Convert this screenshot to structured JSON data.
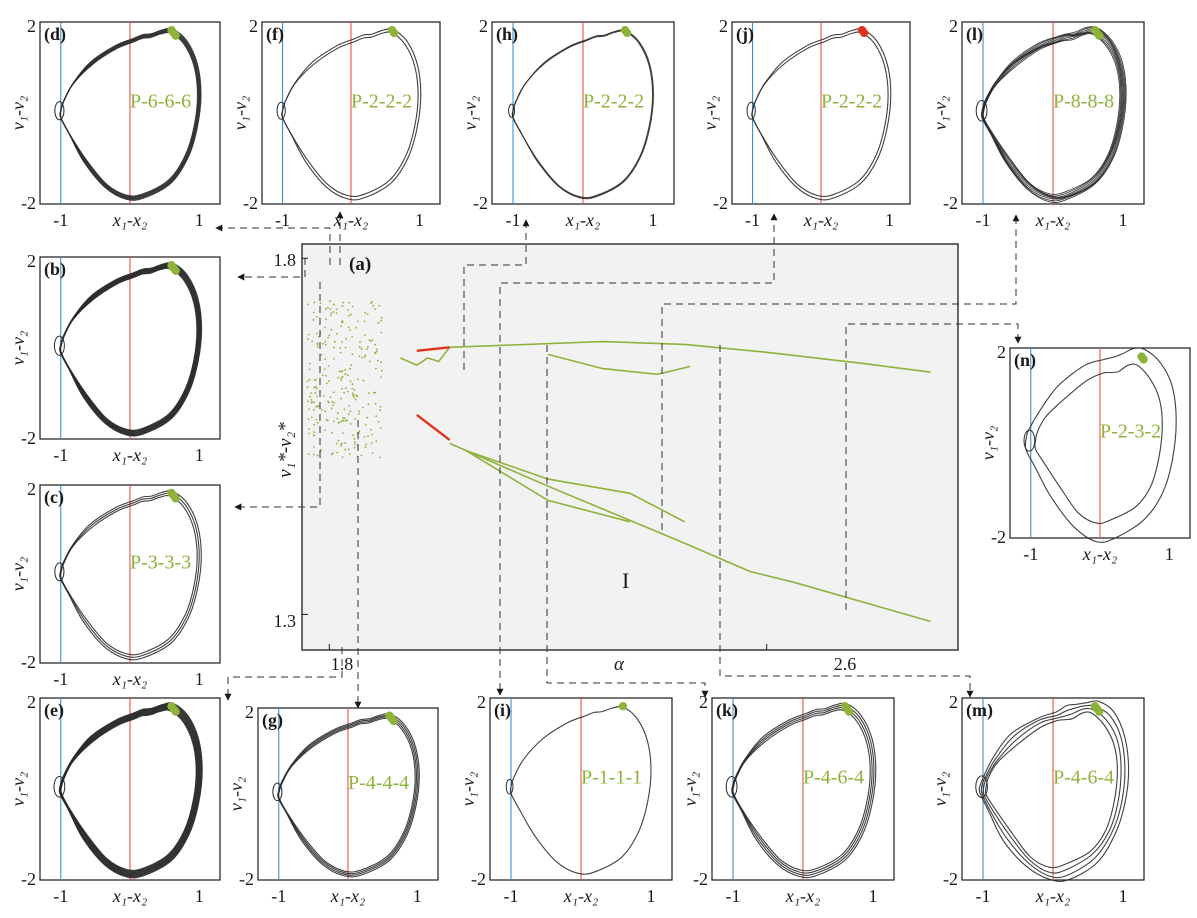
{
  "colors": {
    "ink": "#1a1a1a",
    "trajectory": "#2b2b2b",
    "green": "#8db33a",
    "red": "#e2321e",
    "blue_line": "#3b8fd0",
    "red_line": "#e5534b",
    "connector": "#333333",
    "bif_bg": "#f2f2f2"
  },
  "panels": [
    {
      "id": "d",
      "letter": "(d)",
      "period": "P-6-6-6",
      "loops": 6,
      "spread": 0.025,
      "inner": 0.6,
      "dots": "green",
      "ylabel": "v₁-v₂",
      "xlabel": "x₁-x₂",
      "ytick_top": "2",
      "ytick_bottom": "-2",
      "xtick_left": "-1",
      "xtick_right": "1"
    },
    {
      "id": "f",
      "letter": "(f)",
      "period": "P-2-2-2",
      "loops": 2,
      "spread": 0.02,
      "inner": 0.5,
      "dots": "green",
      "ylabel": "v₁-v₂",
      "xlabel": "x₁-x₂",
      "ytick_top": "2",
      "ytick_bottom": "-2",
      "xtick_left": "-1",
      "xtick_right": "1"
    },
    {
      "id": "h",
      "letter": "(h)",
      "period": "P-2-2-2",
      "loops": 2,
      "spread": 0.006,
      "inner": 0.2,
      "dots": "green",
      "ylabel": "v₁-v₂",
      "xlabel": "x₁-x₂",
      "ytick_top": "2",
      "ytick_bottom": "-2",
      "xtick_left": "-1",
      "xtick_right": "1"
    },
    {
      "id": "j",
      "letter": "(j)",
      "period": "P-2-2-2",
      "loops": 2,
      "spread": 0.02,
      "inner": 0.5,
      "dots": "red",
      "ylabel": "v₁-v₂",
      "xlabel": "x₁-x₂",
      "ytick_top": "2",
      "ytick_bottom": "-2",
      "xtick_left": "-1",
      "xtick_right": "1"
    },
    {
      "id": "l",
      "letter": "(l)",
      "period": "P-8-8-8",
      "loops": 8,
      "spread": 0.045,
      "inner": 0.8,
      "dots": "green",
      "ylabel": "v₁-v₂",
      "xlabel": "x₁-x₂",
      "ytick_top": "2",
      "ytick_bottom": "-2",
      "xtick_left": "-1",
      "xtick_right": "1"
    },
    {
      "id": "b",
      "letter": "(b)",
      "period": "",
      "loops": 12,
      "spread": 0.035,
      "inner": 0.7,
      "dots": "green",
      "ylabel": "v₁-v₂",
      "xlabel": "x₁-x₂",
      "ytick_top": "2",
      "ytick_bottom": "-2",
      "xtick_left": "-1",
      "xtick_right": "1"
    },
    {
      "id": "c",
      "letter": "(c)",
      "period": "P-3-3-3",
      "loops": 3,
      "spread": 0.03,
      "inner": 0.6,
      "dots": "green",
      "ylabel": "v₁-v₂",
      "xlabel": "x₁-x₂",
      "ytick_top": "2",
      "ytick_bottom": "-2",
      "xtick_left": "-1",
      "xtick_right": "1"
    },
    {
      "id": "n",
      "letter": "(n)",
      "period": "P-2-3-2",
      "loops": 2,
      "spread": 0.1,
      "inner": 0.8,
      "dots": "green",
      "ylabel": "v₁-v₂",
      "xlabel": "x₁-x₂",
      "ytick_top": "2",
      "ytick_bottom": "-2",
      "xtick_left": "-1",
      "xtick_right": "1"
    },
    {
      "id": "e",
      "letter": "(e)",
      "period": "",
      "loops": 14,
      "spread": 0.045,
      "inner": 0.8,
      "dots": "green",
      "ylabel": "v₁-v₂",
      "xlabel": "x₁-x₂",
      "ytick_top": "2",
      "ytick_bottom": "-2",
      "xtick_left": "-1",
      "xtick_right": "1"
    },
    {
      "id": "g",
      "letter": "(g)",
      "period": "P-4-4-4",
      "loops": 4,
      "spread": 0.03,
      "inner": 0.6,
      "dots": "green",
      "ylabel": "v₁-v₂",
      "xlabel": "x₁-x₂",
      "ytick_top": "2",
      "ytick_bottom": "-2",
      "xtick_left": "-1",
      "xtick_right": "1"
    },
    {
      "id": "i",
      "letter": "(i)",
      "period": "P-1-1-1",
      "loops": 1,
      "spread": 0,
      "inner": 0.3,
      "dots": "green",
      "ylabel": "v₁-v₂",
      "xlabel": "x₁-x₂",
      "ytick_top": "2",
      "ytick_bottom": "-2",
      "xtick_left": "-1",
      "xtick_right": "1"
    },
    {
      "id": "k",
      "letter": "(k)",
      "period": "P-4-6-4",
      "loops": 4,
      "spread": 0.04,
      "inner": 0.8,
      "dots": "green",
      "ylabel": "v₁-v₂",
      "xlabel": "x₁-x₂",
      "ytick_top": "2",
      "ytick_bottom": "-2",
      "xtick_left": "-1",
      "xtick_right": "1"
    },
    {
      "id": "m",
      "letter": "(m)",
      "period": "P-4-6-4",
      "loops": 4,
      "spread": 0.08,
      "inner": 0.9,
      "dots": "green",
      "ylabel": "v₁-v₂",
      "xlabel": "x₁-x₂",
      "ytick_top": "2",
      "ytick_bottom": "-2",
      "xtick_left": "-1",
      "xtick_right": "1"
    }
  ],
  "chart_data": {
    "type": "scatter",
    "letter": "(a)",
    "region_label": "I",
    "xlabel": "α",
    "ylabel": "v₁*-v₂*",
    "xlim": [
      1.75,
      2.95
    ],
    "ylim": [
      1.25,
      1.82
    ],
    "xticks": [
      "1.8",
      "2.6"
    ],
    "xtick_values": [
      1.8,
      2.6
    ],
    "yticks": [
      "1.8",
      "1.3"
    ],
    "ytick_values": [
      1.8,
      1.3
    ],
    "series": [
      {
        "color": "green",
        "x": [
          2.02,
          2.3,
          2.45,
          2.6,
          2.78,
          2.9
        ],
        "y": [
          1.675,
          1.683,
          1.679,
          1.668,
          1.652,
          1.64
        ]
      },
      {
        "color": "green",
        "x": [
          2.2,
          2.3,
          2.4,
          2.46
        ],
        "y": [
          1.665,
          1.645,
          1.637,
          1.648
        ]
      },
      {
        "color": "green",
        "x": [
          2.02,
          2.2,
          2.45,
          2.57,
          2.65,
          2.9
        ],
        "y": [
          1.54,
          1.48,
          1.4,
          1.36,
          1.345,
          1.29
        ]
      },
      {
        "color": "green",
        "x": [
          2.05,
          2.2,
          2.35,
          2.45
        ],
        "y": [
          1.53,
          1.49,
          1.47,
          1.43
        ]
      },
      {
        "color": "green",
        "x": [
          2.05,
          2.2,
          2.35
        ],
        "y": [
          1.53,
          1.46,
          1.43
        ]
      },
      {
        "color": "green",
        "x": [
          1.93,
          1.96,
          1.98,
          2.0,
          2.02
        ],
        "y": [
          1.66,
          1.65,
          1.66,
          1.655,
          1.675
        ]
      },
      {
        "color": "red",
        "x": [
          1.96,
          2.02
        ],
        "y": [
          1.67,
          1.675
        ]
      },
      {
        "color": "red",
        "x": [
          1.96,
          2.02
        ],
        "y": [
          1.58,
          1.545
        ]
      }
    ]
  }
}
